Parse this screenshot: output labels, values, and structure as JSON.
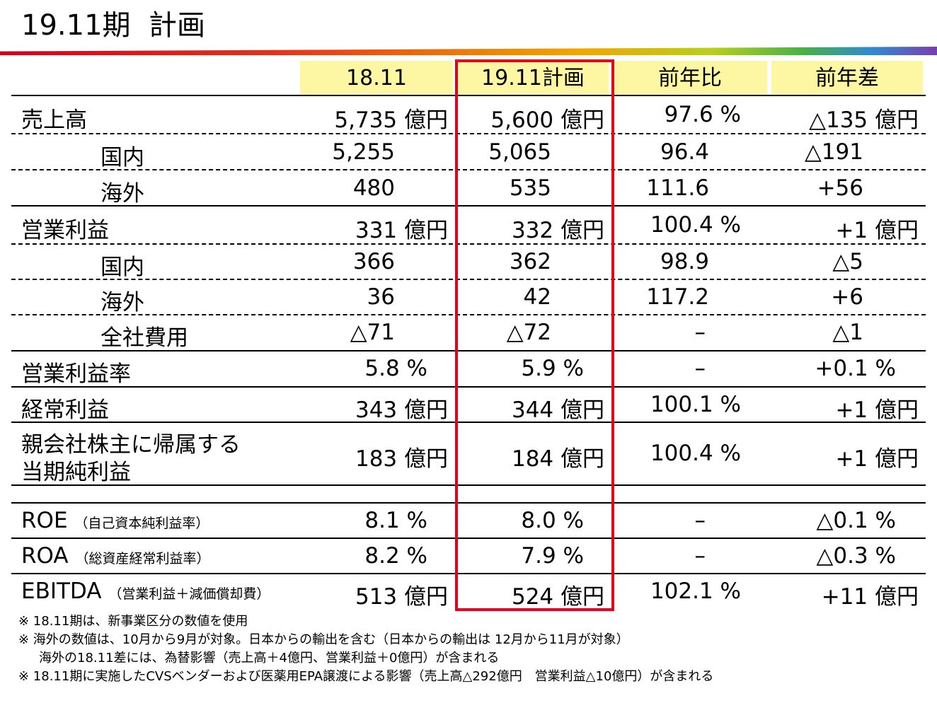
{
  "title": "19.11期  計画",
  "columns": [
    "18.11",
    "19.11計画",
    "前年比",
    "前年差"
  ],
  "rows": [
    {
      "label": "売上高",
      "c1": "5,735 億円",
      "c2": "5,600 億円",
      "c3": "97.6 %",
      "c4": "△135 億円"
    },
    {
      "label": "国内",
      "c1": "5,255",
      "c2": "5,065",
      "c3": "96.4",
      "c4": "△191"
    },
    {
      "label": "海外",
      "c1": "480",
      "c2": "535",
      "c3": "111.6",
      "c4": "+56"
    },
    {
      "label": "営業利益",
      "c1": "331 億円",
      "c2": "332 億円",
      "c3": "100.4 %",
      "c4": "+1 億円"
    },
    {
      "label": "国内",
      "c1": "366",
      "c2": "362",
      "c3": "98.9",
      "c4": "△5"
    },
    {
      "label": "海外",
      "c1": "36",
      "c2": "42",
      "c3": "117.2",
      "c4": "+6"
    },
    {
      "label": "全社費用",
      "c1": "△71",
      "c2": "△72",
      "c3": "–",
      "c4": "△1"
    },
    {
      "label": "営業利益率",
      "c1": "5.8 %",
      "c2": "5.9 %",
      "c3": "–",
      "c4": "+0.1 %"
    },
    {
      "label": "経常利益",
      "c1": "343 億円",
      "c2": "344 億円",
      "c3": "100.1 %",
      "c4": "+1 億円"
    },
    {
      "label_line1": "親会社株主に帰属する",
      "label_line2": "当期純利益",
      "c1": "183 億円",
      "c2": "184 億円",
      "c3": "100.4 %",
      "c4": "+1 億円"
    },
    {
      "label": "ROE",
      "sub": "（自己資本純利益率）",
      "c1": "8.1 %",
      "c2": "8.0 %",
      "c3": "–",
      "c4": "△0.1 %"
    },
    {
      "label": "ROA",
      "sub": "（総資産経常利益率）",
      "c1": "8.2 %",
      "c2": "7.9 %",
      "c3": "–",
      "c4": "△0.3 %"
    },
    {
      "label": "EBITDA",
      "sub": "（営業利益＋減価償却費）",
      "c1": "513 億円",
      "c2": "524 億円",
      "c3": "102.1 %",
      "c4": "+11 億円"
    }
  ],
  "notes": [
    "※ 18.11期は、新事業区分の数値を使用",
    "※ 海外の数値は、10月から9月が対象。日本からの輸出を含む（日本からの輸出は 12月から11月が対象）",
    "海外の18.11差には、為替影響（売上高＋4億円、営業利益＋0億円）が含まれる",
    "※ 18.11期に実施したCVSベンダーおよび医薬用EPA譲渡による影響（売上高△292億円　営業利益△10億円）が含まれる"
  ],
  "colors": {
    "header_bg": "#fdf7a3",
    "highlight_border": "#e3001b"
  }
}
